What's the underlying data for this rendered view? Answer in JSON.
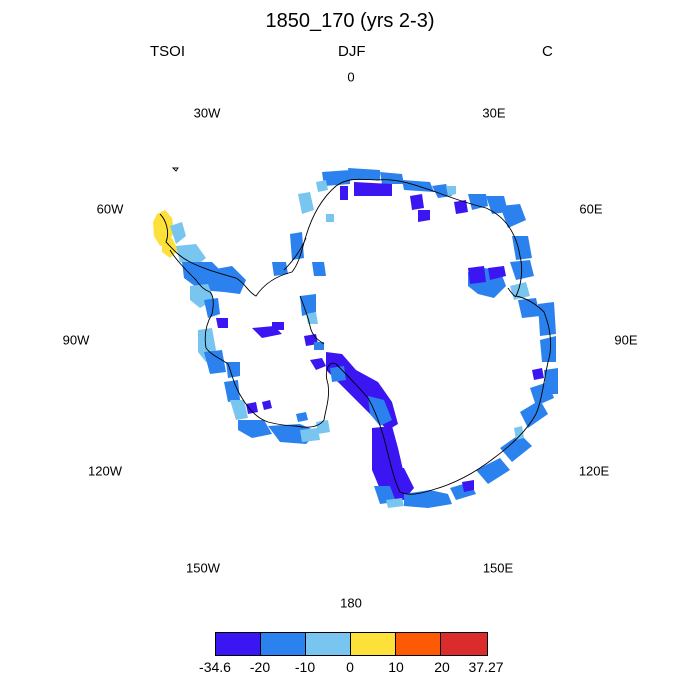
{
  "title": "1850_170 (yrs 2-3)",
  "left_label": "TSOI",
  "center_label": "DJF",
  "right_label": "C",
  "longitude_labels": [
    "0",
    "30E",
    "60E",
    "90E",
    "120E",
    "150E",
    "180",
    "150W",
    "120W",
    "90W",
    "60W",
    "30W"
  ],
  "colorbar": {
    "colors": [
      "#3c16f2",
      "#2b82ee",
      "#78c6f0",
      "#fde03a",
      "#fc5a05",
      "#da2c2c"
    ],
    "labels": [
      "-34.6",
      "-20",
      "-10",
      "0",
      "10",
      "20",
      "37.27"
    ]
  }
}
